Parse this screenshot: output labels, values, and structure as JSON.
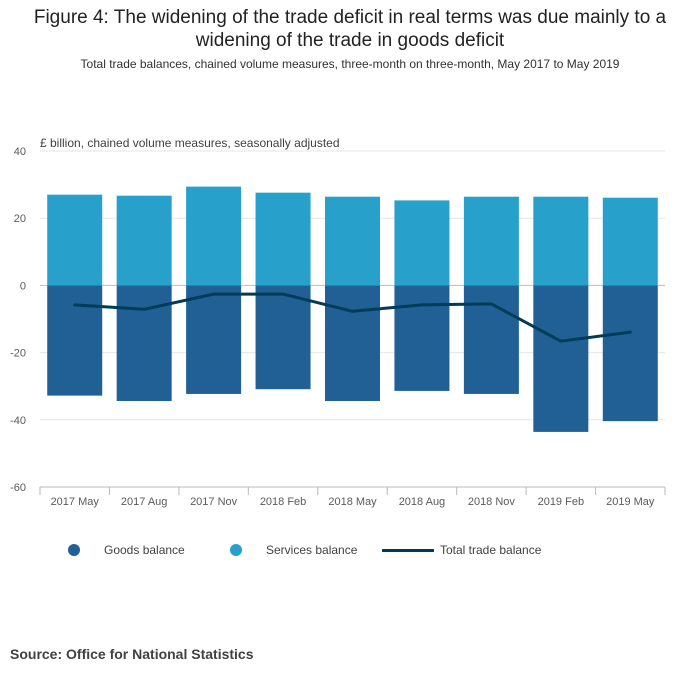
{
  "title": "Figure 4: The widening of the trade deficit in real terms was due mainly to a widening of the trade in goods deficit",
  "subtitle": "Total trade balances, chained volume measures, three-month on three-month, May 2017 to May 2019",
  "source": "Source: Office for National Statistics",
  "colors": {
    "goods": "#206095",
    "services": "#27a0cc",
    "total": "#003c57",
    "grid": "#e6e6e6",
    "axis": "#bababa"
  },
  "chart_data": {
    "type": "bar",
    "stacked": true,
    "ylabel": "£ billion, chained volume measures, seasonally adjusted",
    "ylim": [
      -60,
      40
    ],
    "yticks": [
      40,
      20,
      0,
      -20,
      -40,
      -60
    ],
    "grid": true,
    "legend_position": "bottom",
    "categories": [
      "2017 May",
      "2017 Aug",
      "2017 Nov",
      "2018 Feb",
      "2018 May",
      "2018 Aug",
      "2018 Nov",
      "2019 Feb",
      "2019 May"
    ],
    "series": [
      {
        "name": "Goods balance",
        "type": "bar",
        "values": [
          -32.8,
          -34.4,
          -32.3,
          -30.9,
          -34.4,
          -31.4,
          -32.3,
          -43.6,
          -40.4
        ]
      },
      {
        "name": "Services balance",
        "type": "bar",
        "values": [
          27.0,
          26.7,
          29.4,
          27.6,
          26.4,
          25.3,
          26.4,
          26.4,
          26.1
        ]
      },
      {
        "name": "Total trade balance",
        "type": "line",
        "values": [
          -5.8,
          -7.1,
          -2.6,
          -2.6,
          -7.7,
          -5.8,
          -5.5,
          -16.6,
          -13.9
        ]
      }
    ]
  }
}
